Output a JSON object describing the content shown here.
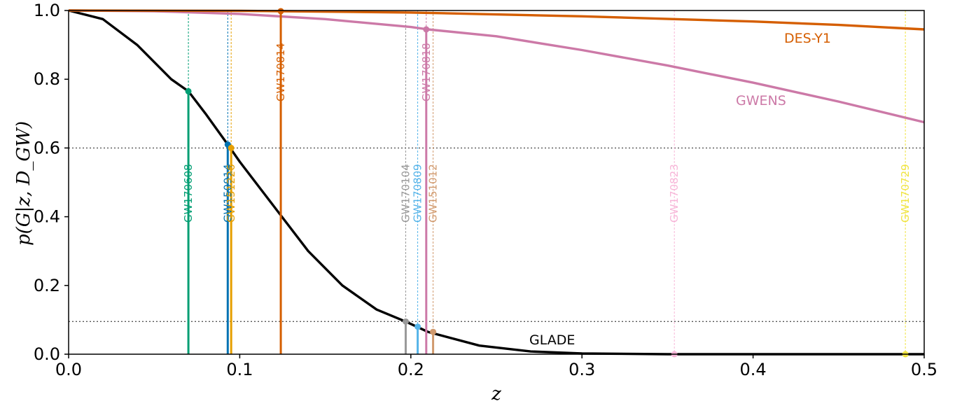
{
  "chart_data": {
    "type": "line",
    "title": "",
    "xlabel": "z",
    "ylabel": "p(G|z, D_GW)",
    "xlim": [
      0.0,
      0.5
    ],
    "ylim": [
      0.0,
      1.0
    ],
    "x_ticks": [
      "0.0",
      "0.1",
      "0.2",
      "0.3",
      "0.4",
      "0.5"
    ],
    "y_ticks": [
      "0.0",
      "0.2",
      "0.4",
      "0.6",
      "0.8",
      "1.0"
    ],
    "grid": false,
    "reference_lines": [
      0.6,
      0.095
    ],
    "series": [
      {
        "name": "GLADE",
        "color": "#000000",
        "x": [
          0.0,
          0.02,
          0.04,
          0.06,
          0.07,
          0.08,
          0.093,
          0.1,
          0.12,
          0.14,
          0.16,
          0.18,
          0.197,
          0.21,
          0.24,
          0.27,
          0.3,
          0.35,
          0.4,
          0.45,
          0.5
        ],
        "y": [
          1.0,
          0.975,
          0.9,
          0.8,
          0.765,
          0.7,
          0.61,
          0.56,
          0.43,
          0.3,
          0.2,
          0.13,
          0.095,
          0.065,
          0.025,
          0.008,
          0.002,
          0.0,
          0.0,
          0.0,
          0.0
        ]
      },
      {
        "name": "GWENS",
        "color": "#cc79a7",
        "x": [
          0.0,
          0.05,
          0.1,
          0.15,
          0.2,
          0.21,
          0.25,
          0.3,
          0.35,
          0.4,
          0.45,
          0.5
        ],
        "y": [
          1.0,
          0.998,
          0.99,
          0.975,
          0.952,
          0.945,
          0.925,
          0.885,
          0.84,
          0.79,
          0.735,
          0.675
        ]
      },
      {
        "name": "DES-Y1",
        "color": "#d55e00",
        "x": [
          0.0,
          0.1,
          0.124,
          0.2,
          0.3,
          0.4,
          0.45,
          0.5
        ],
        "y": [
          1.0,
          0.999,
          0.998,
          0.994,
          0.983,
          0.968,
          0.958,
          0.945
        ]
      }
    ],
    "events": [
      {
        "label": "GW170608",
        "z": 0.07,
        "p": 0.765,
        "color": "#009e73",
        "curve": "GLADE"
      },
      {
        "label": "GW150914",
        "z": 0.093,
        "p": 0.61,
        "color": "#0072b2",
        "curve": "GLADE"
      },
      {
        "label": "GW151226",
        "z": 0.095,
        "p": 0.6,
        "color": "#e69f00",
        "curve": "GLADE"
      },
      {
        "label": "GW170814",
        "z": 0.124,
        "p": 0.998,
        "color": "#d55e00",
        "curve": "DES-Y1"
      },
      {
        "label": "GW170104",
        "z": 0.197,
        "p": 0.095,
        "color": "#999999",
        "curve": "GLADE"
      },
      {
        "label": "GW170809",
        "z": 0.204,
        "p": 0.08,
        "color": "#56b4e9",
        "curve": "GLADE"
      },
      {
        "label": "GW170818",
        "z": 0.209,
        "p": 0.945,
        "color": "#cc79a7",
        "curve": "GWENS"
      },
      {
        "label": "GW151012",
        "z": 0.213,
        "p": 0.065,
        "color": "#d19a6e",
        "curve": "GLADE"
      },
      {
        "label": "GW170823",
        "z": 0.354,
        "p": 0.0,
        "color": "#f7b6d8",
        "curve": "GLADE"
      },
      {
        "label": "GW170729",
        "z": 0.489,
        "p": 0.0,
        "color": "#f0e442",
        "curve": "GLADE"
      }
    ]
  }
}
